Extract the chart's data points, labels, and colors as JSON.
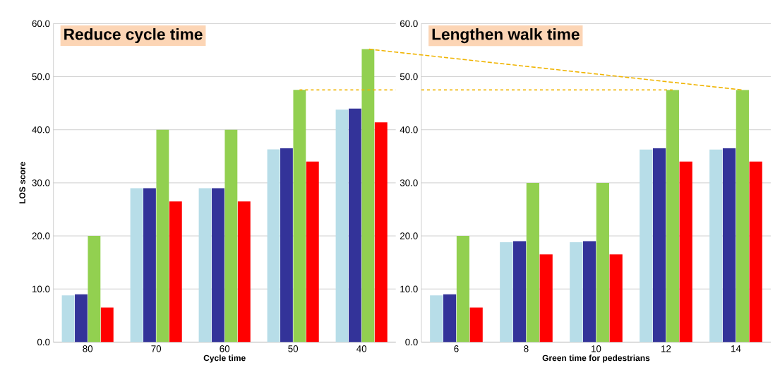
{
  "chart_data": [
    {
      "type": "bar",
      "title": "Reduce cycle time",
      "xlabel": "Cycle time",
      "ylabel": "LOS score",
      "categories": [
        "80",
        "70",
        "60",
        "50",
        "40"
      ],
      "series": [
        {
          "color": "#b7dde8",
          "values": [
            8.8,
            29.0,
            29.0,
            36.3,
            43.8
          ]
        },
        {
          "color": "#333399",
          "values": [
            9.0,
            29.0,
            29.0,
            36.5,
            44.0
          ]
        },
        {
          "color": "#92d050",
          "values": [
            20.0,
            40.0,
            40.0,
            47.5,
            55.2
          ]
        },
        {
          "color": "#ff0000",
          "values": [
            6.5,
            26.5,
            26.5,
            34.0,
            41.4
          ]
        }
      ],
      "ylim": [
        0,
        60
      ],
      "yticks": [
        {
          "value": 0,
          "label": "0.0"
        },
        {
          "value": 10,
          "label": "10.0"
        },
        {
          "value": 20,
          "label": "20.0"
        },
        {
          "value": 30,
          "label": "30.0"
        },
        {
          "value": 40,
          "label": "40.0"
        },
        {
          "value": 50,
          "label": "50.0"
        },
        {
          "value": 60,
          "label": "60.0"
        }
      ],
      "ref_lines": [
        {
          "axis": "y",
          "value": 47.5,
          "color": "#f0b400",
          "line_style": "dashed"
        }
      ],
      "grid": "y"
    },
    {
      "type": "bar",
      "title": "Lengthen walk time",
      "xlabel": "Green time for pedestrians",
      "categories": [
        "6",
        "8",
        "10",
        "12",
        "14"
      ],
      "series": [
        {
          "color": "#b7dde8",
          "values": [
            8.8,
            18.8,
            18.8,
            36.3,
            36.3
          ]
        },
        {
          "color": "#333399",
          "values": [
            9.0,
            19.0,
            19.0,
            36.5,
            36.5
          ]
        },
        {
          "color": "#92d050",
          "values": [
            20.0,
            30.0,
            30.0,
            47.5,
            47.5
          ]
        },
        {
          "color": "#ff0000",
          "values": [
            6.5,
            16.5,
            16.5,
            34.0,
            34.0
          ]
        }
      ],
      "ylim": [
        0,
        60
      ],
      "yticks": [
        {
          "value": 0,
          "label": "0.0"
        },
        {
          "value": 10,
          "label": "10.0"
        },
        {
          "value": 20,
          "label": "20.0"
        },
        {
          "value": 30,
          "label": "30.0"
        },
        {
          "value": 40,
          "label": "40.0"
        },
        {
          "value": 50,
          "label": "50.0"
        },
        {
          "value": 60,
          "label": "60.0"
        }
      ],
      "ref_lines": [
        {
          "axis": "y",
          "value": 47.5,
          "color": "#f0b400",
          "line_style": "dashed"
        }
      ],
      "grid": "y"
    }
  ]
}
